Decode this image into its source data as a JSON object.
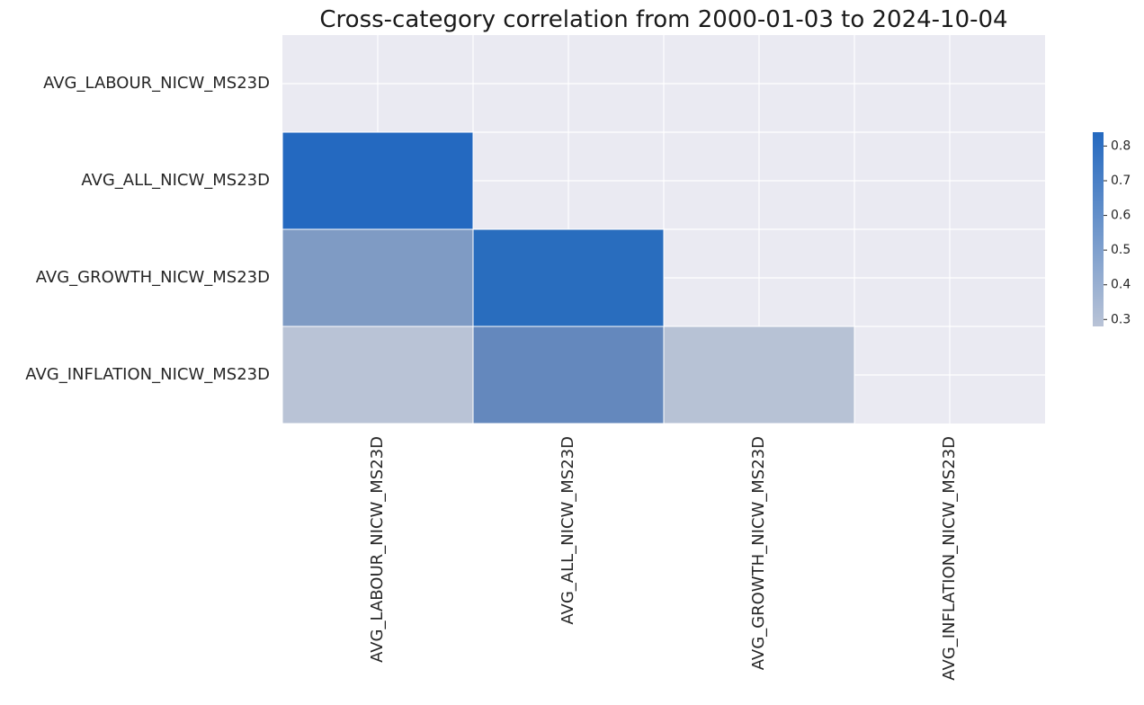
{
  "chart_data": {
    "type": "heatmap",
    "title": "Cross-category correlation from 2000-01-03 to 2024-10-04",
    "rows": [
      "AVG_LABOUR_NICW_MS23D",
      "AVG_ALL_NICW_MS23D",
      "AVG_GROWTH_NICW_MS23D",
      "AVG_INFLATION_NICW_MS23D"
    ],
    "columns": [
      "AVG_LABOUR_NICW_MS23D",
      "AVG_ALL_NICW_MS23D",
      "AVG_GROWTH_NICW_MS23D",
      "AVG_INFLATION_NICW_MS23D"
    ],
    "mask": "upper-triangle-including-diagonal",
    "cells": [
      {
        "row": 1,
        "col": 0,
        "value": 0.83,
        "color": "#2469c0"
      },
      {
        "row": 2,
        "col": 0,
        "value": 0.52,
        "color": "#7f9bc4"
      },
      {
        "row": 2,
        "col": 1,
        "value": 0.81,
        "color": "#296dbe"
      },
      {
        "row": 3,
        "col": 0,
        "value": 0.31,
        "color": "#b9c3d6"
      },
      {
        "row": 3,
        "col": 1,
        "value": 0.64,
        "color": "#6488bd"
      },
      {
        "row": 3,
        "col": 2,
        "value": 0.32,
        "color": "#b7c2d5"
      }
    ],
    "colorbar": {
      "range": [
        0.28,
        0.84
      ],
      "ticks": [
        0.8,
        0.7,
        0.6,
        0.5,
        0.4,
        0.3
      ],
      "tick_labels": [
        "0.8",
        "0.7",
        "0.6",
        "0.5",
        "0.4",
        "0.3"
      ],
      "color_low": "#b9c3d6",
      "color_high": "#2469c0"
    },
    "background_color": "#eaeaf2",
    "grid_color": "#ffffff",
    "grid": true
  }
}
